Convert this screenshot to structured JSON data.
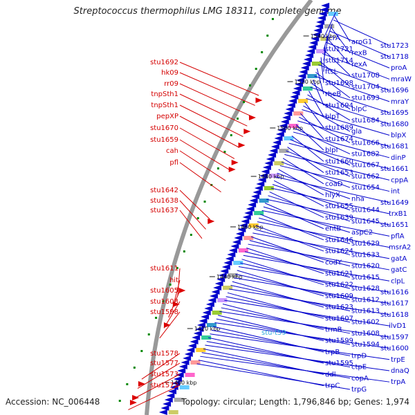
{
  "title": "Streptococcus thermophilus LMG 18311, complete genome",
  "accession": "Accession: NC_006448",
  "summary": "Topology: circular; Length: 1,796,846 bp; Genes: 1,974",
  "ticks": [
    "1540 kbp",
    "1520 kbp",
    "1500 kbp",
    "1480 kbp",
    "1460 kbp",
    "1440 kbp",
    "1420 kbp",
    "1400 kbp"
  ],
  "left_labels": [
    "stu1692",
    "hk09",
    "rr09",
    "tnpSth1",
    "tnpSth1",
    "pepXP",
    "stu1670",
    "stu1659",
    "cah",
    "pfl",
    "stu1642",
    "stu1638",
    "stu1637",
    "stu1611",
    "hit",
    "stu1605",
    "stu1603",
    "stu1598",
    "stu1578",
    "stu1577",
    "stu1573",
    "stu1572"
  ],
  "right_labels": [
    "scrA",
    "aroG1",
    "stu1723",
    "stu1721",
    "rexB",
    "stu1718",
    "stu1714",
    "rexA",
    "proA",
    "ftsL",
    "stu1708",
    "mraW",
    "stu1698",
    "stu1704",
    "stu1696",
    "rheB",
    "stu1693",
    "mraY",
    "stu1694",
    "blpC",
    "stu1695",
    "blpT",
    "stu1684",
    "stu1680",
    "stu1689",
    "gla",
    "blpX",
    "stu1674",
    "stu1666",
    "stu1681",
    "blpI",
    "stu1682",
    "dinP",
    "stu1660",
    "stu1667",
    "stu1661",
    "stu1653",
    "stu1662",
    "cppA",
    "coaD",
    "stu1654",
    "int",
    "hlyX",
    "nha",
    "stu1649",
    "stu1655",
    "stu1644",
    "trxB1",
    "stu1639",
    "stu1645",
    "stu1651",
    "entB",
    "aspC2",
    "pflA",
    "stu1646",
    "stu1629",
    "msrA2",
    "stu1624",
    "stu1633",
    "gatA",
    "codY",
    "stu1620",
    "gatC",
    "stu1621",
    "stu1615",
    "clpL",
    "stu1622",
    "stu1628",
    "stu1616",
    "stu1609",
    "stu1612",
    "stu1617",
    "stu1623",
    "stu1613",
    "stu1618",
    "stu1607",
    "stu1602",
    "ilvD1",
    "trmB",
    "stu1608",
    "stu1597",
    "stu1599",
    "stu1594",
    "stu1600",
    "trpB",
    "trpD",
    "trpE",
    "stu1595",
    "ctpE",
    "dnaQ",
    "ddl",
    "copA",
    "trpA",
    "trpC",
    "trpG"
  ],
  "cyan_label": "stu-t59",
  "colors": {
    "backbone": "#999999",
    "gene_fwd": "#0000cc",
    "gene_rev": "#dd0000",
    "label_red": "#d40000",
    "label_blue": "#0000cc",
    "rna": "#008800"
  }
}
